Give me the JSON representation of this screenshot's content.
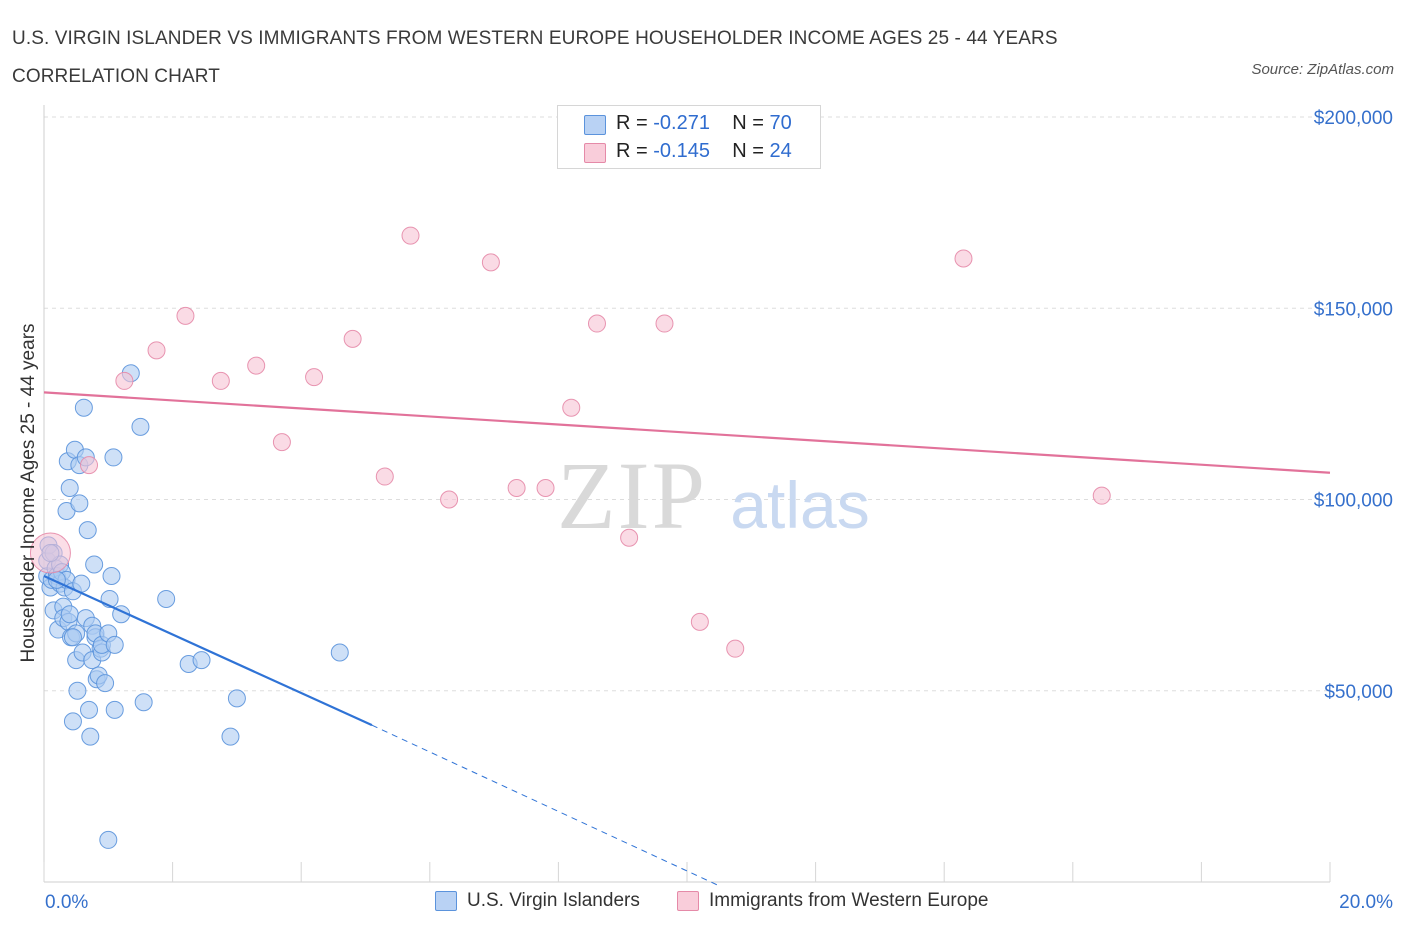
{
  "title": "U.S. VIRGIN ISLANDER VS IMMIGRANTS FROM WESTERN EUROPE HOUSEHOLDER INCOME AGES 25 - 44 YEARS CORRELATION CHART",
  "source": "Source: ZipAtlas.com",
  "watermark": {
    "zip": "ZIP",
    "atlas": "atlas"
  },
  "legend": {
    "rows": [
      {
        "r_label": "R =",
        "r_value": "-0.271",
        "n_label": "N =",
        "n_value": "70"
      },
      {
        "r_label": "R =",
        "r_value": "-0.145",
        "n_label": "N =",
        "n_value": "24"
      }
    ]
  },
  "colors": {
    "blue_fill": "#aecbf2",
    "blue_stroke": "#5b93dc",
    "blue_line": "#2f73d6",
    "pink_fill": "#f7c3d3",
    "pink_stroke": "#e58aa8",
    "pink_line": "#e2729a",
    "axis_label": "#3570cc",
    "grid": "#dddddd"
  },
  "chart_data": {
    "type": "scatter",
    "ylabel": "Householder Income Ages 25 - 44 years",
    "xlabel": "",
    "xlim": [
      0,
      20
    ],
    "ylim": [
      0,
      200000
    ],
    "x_tick_labels": [
      "0.0%",
      "20.0%"
    ],
    "y_tick_labels": [
      "$50,000",
      "$100,000",
      "$150,000",
      "$200,000"
    ],
    "y_ticks": [
      50000,
      100000,
      150000,
      200000
    ],
    "grid": "horizontal dashed",
    "legend_position": "top-center",
    "series": [
      {
        "name": "U.S. Virgin Islanders",
        "points": [
          [
            0.05,
            80000
          ],
          [
            0.05,
            84000
          ],
          [
            0.07,
            88000
          ],
          [
            0.1,
            77000
          ],
          [
            0.12,
            79000
          ],
          [
            0.15,
            86000
          ],
          [
            0.15,
            71000
          ],
          [
            0.18,
            82000
          ],
          [
            0.2,
            80000
          ],
          [
            0.22,
            66000
          ],
          [
            0.25,
            83000
          ],
          [
            0.25,
            78000
          ],
          [
            0.28,
            81000
          ],
          [
            0.3,
            72000
          ],
          [
            0.3,
            69000
          ],
          [
            0.32,
            77000
          ],
          [
            0.35,
            97000
          ],
          [
            0.35,
            79000
          ],
          [
            0.37,
            110000
          ],
          [
            0.38,
            68000
          ],
          [
            0.4,
            103000
          ],
          [
            0.4,
            70000
          ],
          [
            0.42,
            64000
          ],
          [
            0.45,
            42000
          ],
          [
            0.45,
            76000
          ],
          [
            0.48,
            113000
          ],
          [
            0.5,
            65000
          ],
          [
            0.5,
            58000
          ],
          [
            0.52,
            50000
          ],
          [
            0.55,
            109000
          ],
          [
            0.55,
            99000
          ],
          [
            0.58,
            78000
          ],
          [
            0.6,
            60000
          ],
          [
            0.62,
            124000
          ],
          [
            0.65,
            111000
          ],
          [
            0.65,
            69000
          ],
          [
            0.68,
            92000
          ],
          [
            0.7,
            45000
          ],
          [
            0.72,
            38000
          ],
          [
            0.75,
            67000
          ],
          [
            0.75,
            58000
          ],
          [
            0.78,
            83000
          ],
          [
            0.8,
            64000
          ],
          [
            0.8,
            65000
          ],
          [
            0.82,
            53000
          ],
          [
            0.85,
            54000
          ],
          [
            0.88,
            61000
          ],
          [
            0.9,
            60000
          ],
          [
            0.9,
            62000
          ],
          [
            0.95,
            52000
          ],
          [
            1.0,
            11000
          ],
          [
            1.0,
            65000
          ],
          [
            1.02,
            74000
          ],
          [
            1.05,
            80000
          ],
          [
            1.08,
            111000
          ],
          [
            1.1,
            62000
          ],
          [
            1.1,
            45000
          ],
          [
            1.2,
            70000
          ],
          [
            1.35,
            133000
          ],
          [
            1.5,
            119000
          ],
          [
            1.55,
            47000
          ],
          [
            1.9,
            74000
          ],
          [
            2.25,
            57000
          ],
          [
            2.45,
            58000
          ],
          [
            2.9,
            38000
          ],
          [
            3.0,
            48000
          ],
          [
            4.6,
            60000
          ],
          [
            0.1,
            86000
          ],
          [
            0.2,
            79000
          ],
          [
            0.45,
            64000
          ]
        ]
      },
      {
        "name": "Immigrants from Western Europe",
        "points": [
          [
            0.1,
            86000
          ],
          [
            0.7,
            109000
          ],
          [
            1.25,
            131000
          ],
          [
            1.75,
            139000
          ],
          [
            2.2,
            148000
          ],
          [
            2.75,
            131000
          ],
          [
            3.3,
            135000
          ],
          [
            3.7,
            115000
          ],
          [
            4.2,
            132000
          ],
          [
            4.8,
            142000
          ],
          [
            5.3,
            106000
          ],
          [
            5.7,
            169000
          ],
          [
            6.3,
            100000
          ],
          [
            6.95,
            162000
          ],
          [
            7.35,
            103000
          ],
          [
            7.8,
            103000
          ],
          [
            8.2,
            124000
          ],
          [
            8.6,
            146000
          ],
          [
            9.1,
            90000
          ],
          [
            9.65,
            146000
          ],
          [
            10.2,
            68000
          ],
          [
            10.75,
            61000
          ],
          [
            14.3,
            163000
          ],
          [
            16.45,
            101000
          ]
        ]
      }
    ],
    "trend_lines": [
      {
        "series": "U.S. Virgin Islanders",
        "x0": 0,
        "y0": 80000,
        "x1": 5.1,
        "y1": 41000,
        "dashed_to_x": 10.5,
        "dashed_to_y": -1000
      },
      {
        "series": "Immigrants from Western Europe",
        "x0": 0,
        "y0": 128000,
        "x1": 20,
        "y1": 107000
      }
    ]
  }
}
